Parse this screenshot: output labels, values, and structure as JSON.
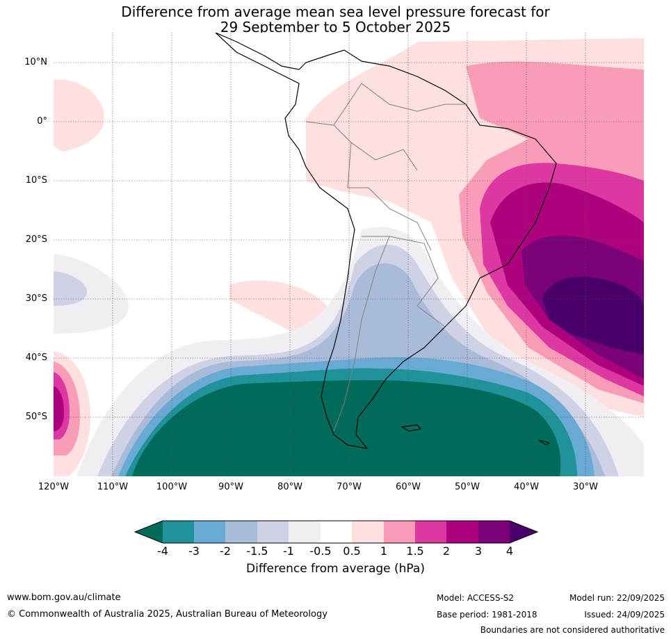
{
  "title": {
    "line1": "Difference from average mean sea level pressure forecast for",
    "line2": "29 September to 5 October 2025"
  },
  "map": {
    "lat_labels": [
      "10°N",
      "0°",
      "10°S",
      "20°S",
      "30°S",
      "40°S",
      "50°S"
    ],
    "lon_labels": [
      "120°W",
      "110°W",
      "100°W",
      "90°W",
      "80°W",
      "70°W",
      "60°W",
      "50°W",
      "40°W",
      "30°W"
    ]
  },
  "colorbar": {
    "ticks": [
      "-4",
      "-3",
      "-2",
      "-1.5",
      "-1",
      "-0.5",
      "0.5",
      "1",
      "1.5",
      "2",
      "3",
      "4"
    ],
    "colors": [
      "#006b5a",
      "#1f9399",
      "#68aad3",
      "#a8bbd8",
      "#cfd1e5",
      "#f1edf3",
      "#ffffff",
      "#fde0df",
      "#f99cb7",
      "#dd37a1",
      "#ae017e",
      "#7a0177",
      "#49006a"
    ],
    "label": "Difference from average (hPa)"
  },
  "footer": {
    "website": "www.bom.gov.au/climate",
    "copyright": "© Commonwealth of Australia 2025, Australian Bureau of Meteorology",
    "model": "Model: ACCESS-S2",
    "base_period": "Base period: 1981-2018",
    "model_run": "Model run: 22/09/2025",
    "issued": "Issued: 24/09/2025",
    "disclaimer": "Boundaries are not considered authoritative"
  }
}
